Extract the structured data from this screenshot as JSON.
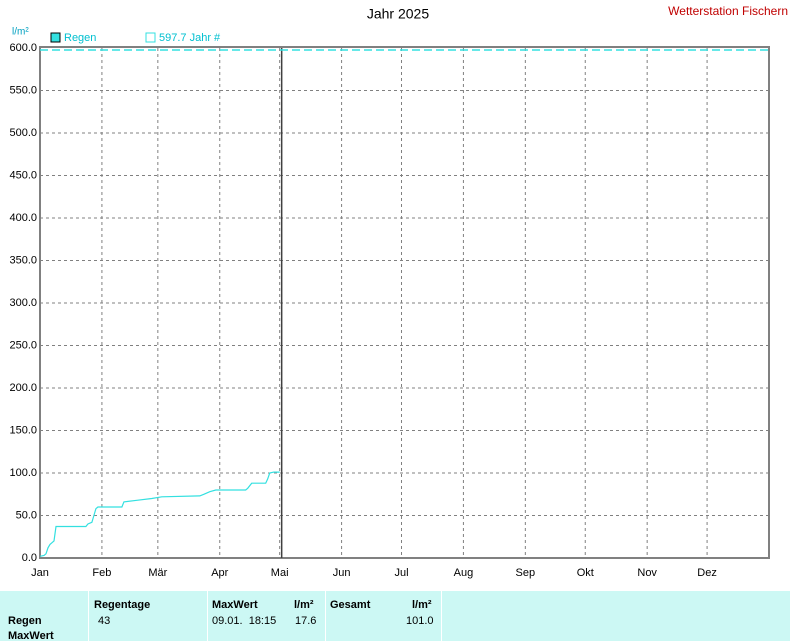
{
  "chart_data": {
    "type": "line",
    "title": "Jahr 2025",
    "subtitle": "Wetterstation Fischern",
    "y_label": "l/m²",
    "x": [
      0,
      2,
      3,
      4,
      5,
      6,
      7,
      8,
      23,
      24,
      26,
      27,
      28,
      29,
      41,
      42,
      49,
      56,
      61,
      80,
      82,
      85,
      88,
      103,
      104,
      106,
      113,
      114,
      115,
      117,
      120
    ],
    "series": [
      {
        "name": "Regen",
        "color": "#33e0e0",
        "values": [
          2,
          3,
          5,
          12,
          16,
          18,
          20,
          37,
          37,
          40,
          42,
          50,
          58,
          60,
          60,
          66,
          68,
          70,
          72,
          73,
          75,
          78,
          80,
          80,
          82,
          88,
          88,
          93,
          100,
          101,
          101
        ]
      }
    ],
    "reference": {
      "label": "597.7 Jahr #",
      "value": 597.7,
      "color": "#33e0e0"
    },
    "xlim": [
      0,
      365
    ],
    "xticks": [
      {
        "value": 0,
        "label": "Jan"
      },
      {
        "value": 31,
        "label": "Feb"
      },
      {
        "value": 59,
        "label": "Mär"
      },
      {
        "value": 90,
        "label": "Apr"
      },
      {
        "value": 120,
        "label": "Mai"
      },
      {
        "value": 151,
        "label": "Jun"
      },
      {
        "value": 181,
        "label": "Jul"
      },
      {
        "value": 212,
        "label": "Aug"
      },
      {
        "value": 243,
        "label": "Sep"
      },
      {
        "value": 273,
        "label": "Okt"
      },
      {
        "value": 304,
        "label": "Nov"
      },
      {
        "value": 334,
        "label": "Dez"
      }
    ],
    "ylim": [
      0,
      600
    ],
    "yticks": [
      {
        "value": 0,
        "label": "0.0"
      },
      {
        "value": 50,
        "label": "50.0"
      },
      {
        "value": 100,
        "label": "100.0"
      },
      {
        "value": 150,
        "label": "150.0"
      },
      {
        "value": 200,
        "label": "200.0"
      },
      {
        "value": 250,
        "label": "250.0"
      },
      {
        "value": 300,
        "label": "300.0"
      },
      {
        "value": 350,
        "label": "350.0"
      },
      {
        "value": 400,
        "label": "400.0"
      },
      {
        "value": 450,
        "label": "450.0"
      },
      {
        "value": 500,
        "label": "500.0"
      },
      {
        "value": 550,
        "label": "550.0"
      },
      {
        "value": 600,
        "label": "600.0"
      }
    ],
    "grid": true
  },
  "table": {
    "headers": [
      "Regentage",
      "MaxWert",
      "l/m²",
      "Gesamt",
      "l/m²"
    ],
    "rows": [
      [
        "Regen",
        "43",
        "09.01.  18:15",
        "17.6",
        "101.0"
      ],
      [
        "MaxWert"
      ]
    ]
  }
}
